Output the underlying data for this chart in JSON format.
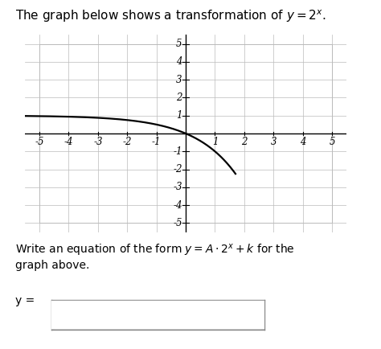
{
  "title_plain": "The graph below shows a transformation of ",
  "title_math": "$y = 2^x$.",
  "A": -1,
  "k": 1,
  "x_range": [
    -5.5,
    5.5
  ],
  "y_range": [
    -5.5,
    5.5
  ],
  "x_ticks": [
    -5,
    -4,
    -3,
    -2,
    -1,
    1,
    2,
    3,
    4,
    5
  ],
  "y_ticks": [
    -5,
    -4,
    -3,
    -2,
    -1,
    1,
    2,
    3,
    4,
    5
  ],
  "curve_color": "#000000",
  "grid_color": "#bbbbbb",
  "axis_color": "#000000",
  "background_color": "#ffffff",
  "bottom_text_line1_plain": "Write an equation of the form ",
  "bottom_text_line1_math": "$y = A \\cdot 2^x + k$",
  "bottom_text_line1_end": " for the",
  "bottom_text_line2": "graph above.",
  "ylabel_label": "y =",
  "title_fontsize": 11,
  "label_fontsize": 10,
  "tick_fontsize": 8.5,
  "curve_linewidth": 1.6
}
